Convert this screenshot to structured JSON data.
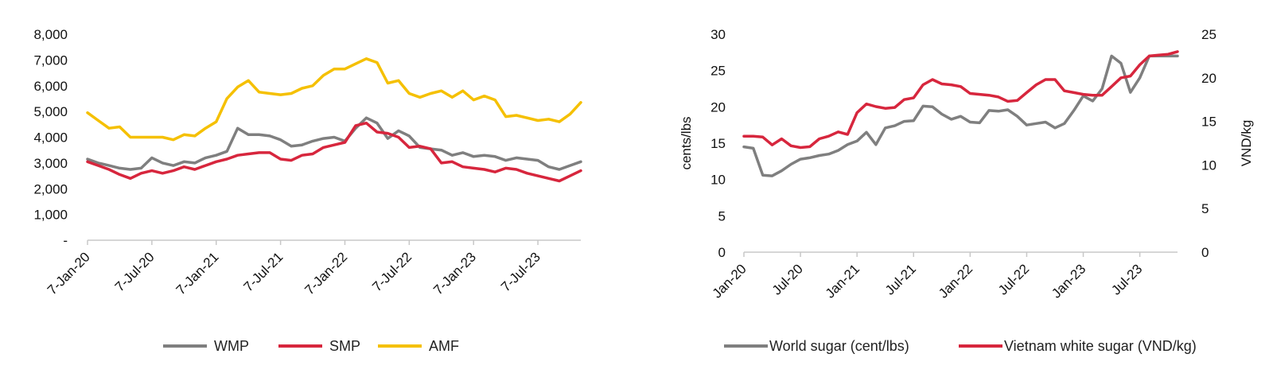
{
  "chart_data": [
    {
      "type": "line",
      "title": "",
      "xlabel": "",
      "ylabel": "",
      "ylim": [
        0,
        8000
      ],
      "y_ticks": [
        "-",
        "1,000",
        "2,000",
        "3,000",
        "4,000",
        "5,000",
        "6,000",
        "7,000",
        "8,000"
      ],
      "x_ticks": [
        "7-Jan-20",
        "7-Jul-20",
        "7-Jan-21",
        "7-Jul-21",
        "7-Jan-22",
        "7-Jul-22",
        "7-Jan-23",
        "7-Jul-23"
      ],
      "grid": false,
      "legend_position": "bottom",
      "n_points": 47,
      "series": [
        {
          "name": "WMP",
          "color": "#7f7f7f",
          "values": [
            3150,
            3000,
            2900,
            2800,
            2750,
            2800,
            3200,
            3000,
            2900,
            3050,
            3000,
            3200,
            3300,
            3450,
            4350,
            4100,
            4100,
            4050,
            3900,
            3650,
            3700,
            3850,
            3950,
            4000,
            3850,
            4350,
            4750,
            4550,
            3950,
            4250,
            4050,
            3600,
            3550,
            3500,
            3300,
            3400,
            3250,
            3300,
            3250,
            3100,
            3200,
            3150,
            3100,
            2850,
            2750,
            2900,
            3050
          ]
        },
        {
          "name": "SMP",
          "color": "#d7263d",
          "values": [
            3050,
            2900,
            2750,
            2550,
            2400,
            2600,
            2700,
            2600,
            2700,
            2850,
            2750,
            2900,
            3050,
            3150,
            3300,
            3350,
            3400,
            3400,
            3150,
            3100,
            3300,
            3350,
            3600,
            3700,
            3800,
            4450,
            4550,
            4200,
            4150,
            4000,
            3600,
            3650,
            3550,
            3000,
            3050,
            2850,
            2800,
            2750,
            2650,
            2800,
            2750,
            2600,
            2500,
            2400,
            2300,
            2500,
            2700
          ]
        },
        {
          "name": "AMF",
          "color": "#f5c000",
          "values": [
            4950,
            4650,
            4350,
            4400,
            4000,
            4000,
            4000,
            4000,
            3900,
            4100,
            4050,
            4350,
            4600,
            5500,
            5950,
            6200,
            5750,
            5700,
            5650,
            5700,
            5900,
            6000,
            6400,
            6650,
            6650,
            6850,
            7050,
            6900,
            6100,
            6200,
            5700,
            5550,
            5700,
            5800,
            5550,
            5800,
            5450,
            5600,
            5450,
            4800,
            4850,
            4750,
            4650,
            4700,
            4600,
            4900,
            5350
          ]
        }
      ]
    },
    {
      "type": "line",
      "title": "",
      "xlabel": "",
      "ylabel": "cents/lbs",
      "y2label": "VND/kg",
      "ylim": [
        0,
        30
      ],
      "y2lim": [
        0,
        25
      ],
      "y_ticks": [
        "0",
        "5",
        "10",
        "15",
        "20",
        "25",
        "30"
      ],
      "y2_ticks": [
        "0",
        "5",
        "10",
        "15",
        "20",
        "25"
      ],
      "x_ticks": [
        "Jan-20",
        "Jul-20",
        "Jan-21",
        "Jul-21",
        "Jan-22",
        "Jul-22",
        "Jan-23",
        "Jul-23"
      ],
      "grid": false,
      "legend_position": "bottom",
      "n_points": 47,
      "series": [
        {
          "name": "World sugar (cent/lbs)",
          "color": "#7f7f7f",
          "axis": "left",
          "values": [
            14.5,
            14.3,
            10.6,
            10.5,
            11.2,
            12.1,
            12.8,
            13.0,
            13.3,
            13.5,
            14.0,
            14.8,
            15.3,
            16.5,
            14.8,
            17.1,
            17.4,
            18.0,
            18.1,
            20.1,
            20.0,
            19.0,
            18.3,
            18.7,
            17.9,
            17.8,
            19.5,
            19.4,
            19.6,
            18.7,
            17.5,
            17.7,
            17.9,
            17.1,
            17.7,
            19.5,
            21.5,
            20.8,
            22.5,
            27.0,
            26.0,
            22.0,
            24.0,
            27.0,
            27.0,
            27.0,
            27.0
          ]
        },
        {
          "name": "Vietnam white sugar (VND/kg)",
          "color": "#d7263d",
          "axis": "right",
          "values": [
            13.3,
            13.3,
            13.2,
            12.3,
            13.0,
            12.2,
            12.0,
            12.1,
            13.0,
            13.3,
            13.8,
            13.5,
            16.0,
            17.0,
            16.7,
            16.5,
            16.6,
            17.5,
            17.7,
            19.2,
            19.8,
            19.3,
            19.2,
            19.0,
            18.2,
            18.1,
            18.0,
            17.8,
            17.3,
            17.4,
            18.3,
            19.2,
            19.8,
            19.8,
            18.5,
            18.3,
            18.1,
            18.0,
            18.0,
            19.0,
            20.0,
            20.2,
            21.5,
            22.5,
            22.6,
            22.7,
            23.0
          ]
        }
      ]
    }
  ]
}
